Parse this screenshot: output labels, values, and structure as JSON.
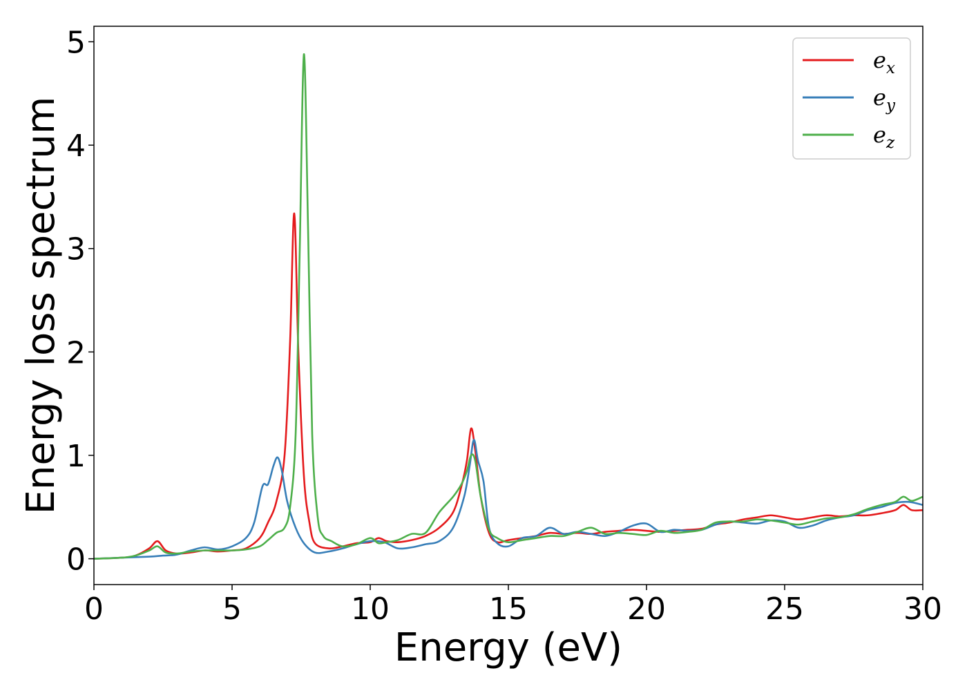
{
  "chart_data": {
    "type": "line",
    "title": "",
    "xlabel": "Energy (eV)",
    "ylabel": "Energy loss spectrum",
    "xlim": [
      0,
      30
    ],
    "ylim": [
      -0.25,
      5.15
    ],
    "xticks": [
      0,
      5,
      10,
      15,
      20,
      25,
      30
    ],
    "yticks": [
      0,
      1,
      2,
      3,
      4,
      5
    ],
    "grid": false,
    "legend_position": "top-right",
    "series": [
      {
        "name": "e",
        "subscript": "x",
        "color": "#e41a1c",
        "points": [
          [
            0,
            0
          ],
          [
            1,
            0.01
          ],
          [
            1.5,
            0.03
          ],
          [
            2,
            0.1
          ],
          [
            2.3,
            0.17
          ],
          [
            2.6,
            0.08
          ],
          [
            3,
            0.05
          ],
          [
            3.5,
            0.06
          ],
          [
            4,
            0.08
          ],
          [
            4.5,
            0.07
          ],
          [
            5,
            0.08
          ],
          [
            5.5,
            0.1
          ],
          [
            6,
            0.2
          ],
          [
            6.3,
            0.35
          ],
          [
            6.6,
            0.55
          ],
          [
            6.9,
            1.0
          ],
          [
            7.1,
            2.1
          ],
          [
            7.25,
            3.34
          ],
          [
            7.4,
            2.0
          ],
          [
            7.6,
            0.8
          ],
          [
            7.8,
            0.35
          ],
          [
            8,
            0.15
          ],
          [
            8.5,
            0.1
          ],
          [
            9,
            0.12
          ],
          [
            9.5,
            0.15
          ],
          [
            10,
            0.16
          ],
          [
            10.3,
            0.2
          ],
          [
            10.6,
            0.17
          ],
          [
            11,
            0.16
          ],
          [
            11.5,
            0.18
          ],
          [
            12,
            0.22
          ],
          [
            12.5,
            0.3
          ],
          [
            13,
            0.45
          ],
          [
            13.3,
            0.7
          ],
          [
            13.5,
            0.95
          ],
          [
            13.65,
            1.26
          ],
          [
            13.8,
            1.05
          ],
          [
            14,
            0.6
          ],
          [
            14.3,
            0.25
          ],
          [
            14.6,
            0.16
          ],
          [
            15,
            0.18
          ],
          [
            15.5,
            0.2
          ],
          [
            16,
            0.22
          ],
          [
            16.5,
            0.25
          ],
          [
            17,
            0.24
          ],
          [
            17.5,
            0.25
          ],
          [
            18,
            0.24
          ],
          [
            18.5,
            0.26
          ],
          [
            19,
            0.27
          ],
          [
            19.5,
            0.28
          ],
          [
            20,
            0.27
          ],
          [
            20.5,
            0.26
          ],
          [
            21,
            0.27
          ],
          [
            21.5,
            0.28
          ],
          [
            22,
            0.29
          ],
          [
            22.5,
            0.33
          ],
          [
            23,
            0.35
          ],
          [
            23.5,
            0.38
          ],
          [
            24,
            0.4
          ],
          [
            24.5,
            0.42
          ],
          [
            25,
            0.4
          ],
          [
            25.5,
            0.38
          ],
          [
            26,
            0.4
          ],
          [
            26.5,
            0.42
          ],
          [
            27,
            0.41
          ],
          [
            27.5,
            0.42
          ],
          [
            28,
            0.42
          ],
          [
            28.5,
            0.44
          ],
          [
            29,
            0.47
          ],
          [
            29.3,
            0.52
          ],
          [
            29.6,
            0.47
          ],
          [
            30,
            0.47
          ]
        ]
      },
      {
        "name": "e",
        "subscript": "y",
        "color": "#377eb8",
        "points": [
          [
            0,
            0
          ],
          [
            1,
            0.01
          ],
          [
            2,
            0.02
          ],
          [
            2.5,
            0.03
          ],
          [
            3,
            0.04
          ],
          [
            3.5,
            0.08
          ],
          [
            4,
            0.11
          ],
          [
            4.5,
            0.09
          ],
          [
            5,
            0.12
          ],
          [
            5.5,
            0.2
          ],
          [
            5.8,
            0.35
          ],
          [
            6.1,
            0.7
          ],
          [
            6.3,
            0.72
          ],
          [
            6.5,
            0.9
          ],
          [
            6.65,
            0.98
          ],
          [
            6.8,
            0.85
          ],
          [
            7,
            0.55
          ],
          [
            7.3,
            0.3
          ],
          [
            7.6,
            0.15
          ],
          [
            8,
            0.06
          ],
          [
            8.5,
            0.07
          ],
          [
            9,
            0.1
          ],
          [
            9.5,
            0.14
          ],
          [
            10,
            0.17
          ],
          [
            10.5,
            0.16
          ],
          [
            11,
            0.1
          ],
          [
            11.5,
            0.11
          ],
          [
            12,
            0.14
          ],
          [
            12.5,
            0.17
          ],
          [
            13,
            0.3
          ],
          [
            13.4,
            0.6
          ],
          [
            13.6,
            0.9
          ],
          [
            13.75,
            1.15
          ],
          [
            13.9,
            0.95
          ],
          [
            14.1,
            0.75
          ],
          [
            14.3,
            0.3
          ],
          [
            14.6,
            0.15
          ],
          [
            15,
            0.12
          ],
          [
            15.5,
            0.2
          ],
          [
            16,
            0.22
          ],
          [
            16.5,
            0.3
          ],
          [
            17,
            0.24
          ],
          [
            17.5,
            0.26
          ],
          [
            18,
            0.24
          ],
          [
            18.5,
            0.22
          ],
          [
            19,
            0.26
          ],
          [
            19.5,
            0.32
          ],
          [
            20,
            0.34
          ],
          [
            20.5,
            0.26
          ],
          [
            21,
            0.28
          ],
          [
            21.5,
            0.27
          ],
          [
            22,
            0.28
          ],
          [
            22.5,
            0.33
          ],
          [
            23,
            0.36
          ],
          [
            23.5,
            0.35
          ],
          [
            24,
            0.34
          ],
          [
            24.5,
            0.37
          ],
          [
            25,
            0.36
          ],
          [
            25.5,
            0.3
          ],
          [
            26,
            0.32
          ],
          [
            26.5,
            0.37
          ],
          [
            27,
            0.4
          ],
          [
            27.5,
            0.42
          ],
          [
            28,
            0.47
          ],
          [
            28.5,
            0.5
          ],
          [
            29,
            0.54
          ],
          [
            29.5,
            0.55
          ],
          [
            30,
            0.52
          ]
        ]
      },
      {
        "name": "e",
        "subscript": "z",
        "color": "#4daf4a",
        "points": [
          [
            0,
            0
          ],
          [
            1,
            0.01
          ],
          [
            1.5,
            0.03
          ],
          [
            2,
            0.08
          ],
          [
            2.3,
            0.12
          ],
          [
            2.6,
            0.06
          ],
          [
            3,
            0.05
          ],
          [
            3.5,
            0.07
          ],
          [
            4,
            0.08
          ],
          [
            4.5,
            0.08
          ],
          [
            5,
            0.08
          ],
          [
            5.5,
            0.09
          ],
          [
            6,
            0.12
          ],
          [
            6.3,
            0.18
          ],
          [
            6.6,
            0.25
          ],
          [
            6.9,
            0.3
          ],
          [
            7.1,
            0.5
          ],
          [
            7.3,
            1.2
          ],
          [
            7.45,
            3.0
          ],
          [
            7.6,
            4.88
          ],
          [
            7.75,
            3.2
          ],
          [
            7.9,
            1.2
          ],
          [
            8.1,
            0.4
          ],
          [
            8.3,
            0.22
          ],
          [
            8.6,
            0.17
          ],
          [
            9,
            0.12
          ],
          [
            9.5,
            0.14
          ],
          [
            10,
            0.2
          ],
          [
            10.3,
            0.15
          ],
          [
            10.6,
            0.16
          ],
          [
            11,
            0.18
          ],
          [
            11.5,
            0.24
          ],
          [
            12,
            0.25
          ],
          [
            12.5,
            0.45
          ],
          [
            13,
            0.6
          ],
          [
            13.3,
            0.72
          ],
          [
            13.5,
            0.85
          ],
          [
            13.65,
            1.0
          ],
          [
            13.8,
            0.95
          ],
          [
            14,
            0.6
          ],
          [
            14.3,
            0.28
          ],
          [
            14.6,
            0.2
          ],
          [
            15,
            0.16
          ],
          [
            15.5,
            0.18
          ],
          [
            16,
            0.2
          ],
          [
            16.5,
            0.22
          ],
          [
            17,
            0.22
          ],
          [
            17.5,
            0.26
          ],
          [
            18,
            0.3
          ],
          [
            18.5,
            0.24
          ],
          [
            19,
            0.25
          ],
          [
            19.5,
            0.24
          ],
          [
            20,
            0.23
          ],
          [
            20.5,
            0.27
          ],
          [
            21,
            0.25
          ],
          [
            21.5,
            0.26
          ],
          [
            22,
            0.28
          ],
          [
            22.5,
            0.35
          ],
          [
            23,
            0.36
          ],
          [
            23.5,
            0.36
          ],
          [
            24,
            0.38
          ],
          [
            24.5,
            0.37
          ],
          [
            25,
            0.35
          ],
          [
            25.5,
            0.33
          ],
          [
            26,
            0.36
          ],
          [
            26.5,
            0.39
          ],
          [
            27,
            0.4
          ],
          [
            27.5,
            0.43
          ],
          [
            28,
            0.48
          ],
          [
            28.5,
            0.52
          ],
          [
            29,
            0.55
          ],
          [
            29.3,
            0.6
          ],
          [
            29.6,
            0.56
          ],
          [
            30,
            0.6
          ]
        ]
      }
    ]
  }
}
